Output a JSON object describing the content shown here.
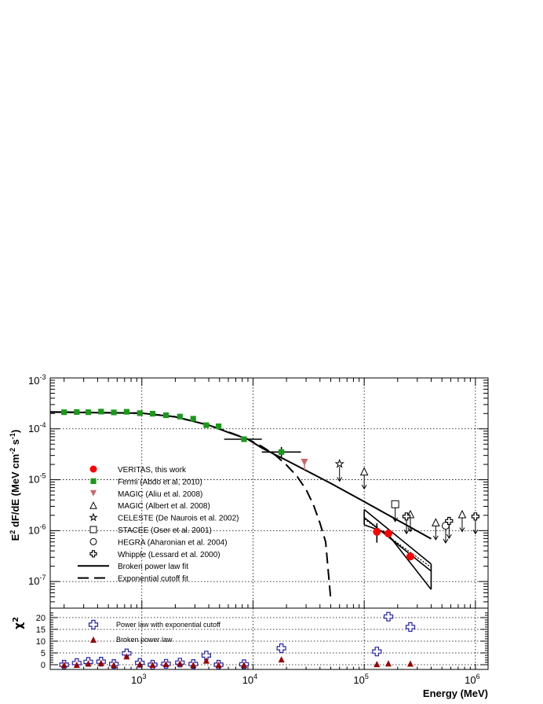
{
  "chart_data": [
    {
      "type": "scatter",
      "panel": "spectrum",
      "xlabel": "Energy (MeV)",
      "ylabel_html": "E<tspan baseline-shift='super' font-size='9'>2</tspan> dF/dE (MeV cm<tspan baseline-shift='super' font-size='9'>-2</tspan> s<tspan baseline-shift='super' font-size='9'>-1</tspan>)",
      "ylabel": "E2 dF/dE (MeV cm-2 s-1)",
      "x_scale": "log",
      "y_scale": "log",
      "xlim": [
        150,
        1300000
      ],
      "ylim": [
        3e-08,
        0.001
      ],
      "x_ticks": [
        1000,
        10000,
        100000,
        1000000
      ],
      "x_tick_labels": [
        {
          "base": "10",
          "exp": "3"
        },
        {
          "base": "10",
          "exp": "4"
        },
        {
          "base": "10",
          "exp": "5"
        },
        {
          "base": "10",
          "exp": "6"
        }
      ],
      "y_ticks": [
        1e-07,
        1e-06,
        1e-05,
        0.0001,
        0.001
      ],
      "y_tick_labels": [
        {
          "base": "10",
          "exp": "-7"
        },
        {
          "base": "10",
          "exp": "-6"
        },
        {
          "base": "10",
          "exp": "-5"
        },
        {
          "base": "10",
          "exp": "-4"
        },
        {
          "base": "10",
          "exp": "-3"
        }
      ],
      "grid": true,
      "legend_placement": "lower-left",
      "legend": [
        {
          "label": "VERITAS, this work",
          "marker": "circle-filled",
          "color": "#ff0000"
        },
        {
          "label": "Fermi (Abdo et al, 2010)",
          "marker": "square-filled",
          "color": "#1a9a1a"
        },
        {
          "label": "MAGIC (Aliu et al. 2008)",
          "marker": "triangle-down-filled",
          "color": "#cc6666"
        },
        {
          "label": "MAGIC (Albert et al. 2008)",
          "marker": "triangle-open",
          "color": "#000000"
        },
        {
          "label": "CELESTE (De Naurois et al. 2002)",
          "marker": "star-open",
          "color": "#000000"
        },
        {
          "label": "STACEE (Oser et al. 2001)",
          "marker": "square-open",
          "color": "#000000"
        },
        {
          "label": "HEGRA (Aharonian et al. 2004)",
          "marker": "circle-open",
          "color": "#000000"
        },
        {
          "label": "Whipple (Lessard et al. 2000)",
          "marker": "cross-open",
          "color": "#000000"
        },
        {
          "label": "Broken power law fit",
          "marker": "line-solid",
          "color": "#000000"
        },
        {
          "label": "Exponential cutoff fit",
          "marker": "line-dashed",
          "color": "#000000"
        }
      ],
      "series": [
        {
          "name": "VERITAS, this work",
          "marker": "circle-filled",
          "color": "#ff0000",
          "points": [
            {
              "x": 130000,
              "y": 9.5e-07,
              "ylo": 5.8e-07,
              "yhi": 1.4e-06
            },
            {
              "x": 165000,
              "y": 8.8e-07,
              "ylo": 7.6e-07,
              "yhi": 1e-06
            },
            {
              "x": 260000,
              "y": 3.1e-07,
              "ylo": 2.7e-07,
              "yhi": 3.5e-07
            }
          ]
        },
        {
          "name": "Fermi (Abdo et al, 2010)",
          "marker": "square-filled",
          "color": "#1a9a1a",
          "points": [
            {
              "x": 200,
              "y": 0.000212
            },
            {
              "x": 260,
              "y": 0.000214
            },
            {
              "x": 330,
              "y": 0.000212
            },
            {
              "x": 430,
              "y": 0.000218
            },
            {
              "x": 560,
              "y": 0.00021
            },
            {
              "x": 730,
              "y": 0.000216
            },
            {
              "x": 960,
              "y": 0.000203
            },
            {
              "x": 1250,
              "y": 0.000198
            },
            {
              "x": 1650,
              "y": 0.000185
            },
            {
              "x": 2200,
              "y": 0.000174
            },
            {
              "x": 2900,
              "y": 0.000158
            },
            {
              "x": 3800,
              "y": 0.000118
            },
            {
              "x": 4900,
              "y": 0.000112
            },
            {
              "x": 8300,
              "y": 6.25e-05,
              "xlo": 5500,
              "xhi": 12000
            },
            {
              "x": 18000,
              "y": 3.5e-05,
              "ylo": 2.8e-05,
              "yhi": 4.4e-05,
              "xlo": 12000,
              "xhi": 27000
            }
          ]
        },
        {
          "name": "MAGIC (Aliu et al. 2008)",
          "marker": "triangle-down-filled",
          "color": "#cc6666",
          "points": [
            {
              "x": 29000,
              "y": 2.2e-05,
              "ylo": 1.55e-05,
              "upper_limit": false
            }
          ]
        },
        {
          "name": "MAGIC (Albert et al. 2008)",
          "marker": "triangle-open",
          "color": "#000000",
          "points": [
            {
              "x": 100000,
              "y": 1.45e-05,
              "upper_limit": true
            },
            {
              "x": 260000,
              "y": 2.1e-06,
              "upper_limit": true
            },
            {
              "x": 440000,
              "y": 1.45e-06,
              "upper_limit": true
            },
            {
              "x": 760000,
              "y": 2.1e-06,
              "upper_limit": true
            }
          ]
        },
        {
          "name": "CELESTE (De Naurois et al. 2002)",
          "marker": "star-open",
          "color": "#000000",
          "points": [
            {
              "x": 60000,
              "y": 2.05e-05,
              "upper_limit": true
            }
          ]
        },
        {
          "name": "STACEE (Oser et al. 2001)",
          "marker": "square-open",
          "color": "#000000",
          "points": [
            {
              "x": 190000,
              "y": 3.3e-06,
              "upper_limit": true
            }
          ]
        },
        {
          "name": "HEGRA (Aharonian et al. 2004)",
          "marker": "circle-open",
          "color": "#000000",
          "points": [
            {
              "x": 540000,
              "y": 1.25e-06,
              "upper_limit": true
            }
          ]
        },
        {
          "name": "Whipple (Lessard et al. 2000)",
          "marker": "cross-open",
          "color": "#000000",
          "points": [
            {
              "x": 240000,
              "y": 1.9e-06,
              "upper_limit": true
            },
            {
              "x": 580000,
              "y": 1.55e-06,
              "upper_limit": true
            },
            {
              "x": 1000000,
              "y": 1.9e-06,
              "upper_limit": true
            }
          ]
        }
      ],
      "curves": [
        {
          "name": "Broken power law fit",
          "style": "solid",
          "color": "#000000",
          "points": [
            [
              150,
              0.000213
            ],
            [
              1000,
              0.000203
            ],
            [
              2000,
              0.000172
            ],
            [
              4000,
              0.000118
            ],
            [
              6000,
              8.52e-05
            ],
            [
              9000,
              6.23e-05
            ],
            [
              12000,
              4.22e-05
            ],
            [
              20000,
              2.4e-05
            ],
            [
              50000,
              8.5e-06
            ],
            [
              100000,
              3.7e-06
            ],
            [
              200000,
              1.6e-06
            ],
            [
              400000,
              6.9e-07
            ]
          ]
        },
        {
          "name": "Exponential cutoff fit",
          "style": "dashed",
          "color": "#000000",
          "points": [
            [
              150,
              0.000215
            ],
            [
              1000,
              0.000203
            ],
            [
              2000,
              0.000172
            ],
            [
              4000,
              0.000118
            ],
            [
              6000,
              8.7e-05
            ],
            [
              9000,
              6.23e-05
            ],
            [
              12000,
              4.5e-05
            ],
            [
              16000,
              3e-05
            ],
            [
              20000,
              1.95e-05
            ],
            [
              25000,
              1.15e-05
            ],
            [
              30000,
              6.4e-06
            ],
            [
              35000,
              3.2e-06
            ],
            [
              40000,
              1.4e-06
            ],
            [
              45000,
              6e-07
            ],
            [
              50000,
              4.5e-08
            ]
          ]
        }
      ],
      "bands": [
        {
          "style": "solid",
          "color": "#000000",
          "upper": [
            [
              100000,
              2.6e-06
            ],
            [
              400000,
              2.2e-07
            ]
          ],
          "lower": [
            [
              100000,
              1.3e-06
            ],
            [
              160000,
              9e-07
            ],
            [
              400000,
              7e-08
            ]
          ],
          "center": [
            [
              100000,
              1.8e-06
            ],
            [
              400000,
              1.6e-07
            ]
          ],
          "dotted": [
            [
              100000,
              1.7e-06
            ],
            [
              400000,
              1.9e-07
            ]
          ]
        }
      ]
    },
    {
      "type": "scatter",
      "panel": "residuals",
      "ylabel": "χ2",
      "ylabel_base": "χ",
      "ylabel_exp": "2",
      "x_scale": "log",
      "xlim": [
        150,
        1300000
      ],
      "ylim": [
        -2,
        24
      ],
      "y_ticks": [
        0,
        5,
        10,
        15,
        20
      ],
      "y_tick_labels": [
        "0",
        "5",
        "10",
        "15",
        "20"
      ],
      "grid": true,
      "legend_placement": "top-left",
      "legend": [
        {
          "label": "Power law with exponential cutoff",
          "marker": "cross-open",
          "color": "#2222aa"
        },
        {
          "label": "Broken power law",
          "marker": "triangle-filled",
          "color": "#990000"
        }
      ],
      "series": [
        {
          "name": "Power law with exponential cutoff",
          "marker": "cross-open",
          "color": "#2222aa",
          "points": [
            {
              "x": 200,
              "y": 0.0
            },
            {
              "x": 260,
              "y": 0.7
            },
            {
              "x": 330,
              "y": 1.2
            },
            {
              "x": 430,
              "y": 1.3
            },
            {
              "x": 560,
              "y": 0.3
            },
            {
              "x": 730,
              "y": 4.8
            },
            {
              "x": 960,
              "y": 0.8
            },
            {
              "x": 1250,
              "y": 0.0
            },
            {
              "x": 1650,
              "y": 0.4
            },
            {
              "x": 2200,
              "y": 0.9
            },
            {
              "x": 2900,
              "y": 0.3
            },
            {
              "x": 3800,
              "y": 3.9
            },
            {
              "x": 4900,
              "y": 0.0
            },
            {
              "x": 8300,
              "y": 0.2
            },
            {
              "x": 18000,
              "y": 7.0
            },
            {
              "x": 130000,
              "y": 5.6
            },
            {
              "x": 165000,
              "y": 20.4
            },
            {
              "x": 260000,
              "y": 16.0
            }
          ]
        },
        {
          "name": "Broken power law",
          "marker": "triangle-filled",
          "color": "#990000",
          "points": [
            {
              "x": 200,
              "y": 0.0
            },
            {
              "x": 260,
              "y": 0.0
            },
            {
              "x": 330,
              "y": 0.6
            },
            {
              "x": 430,
              "y": 0.8
            },
            {
              "x": 560,
              "y": 0.0
            },
            {
              "x": 730,
              "y": 3.6
            },
            {
              "x": 960,
              "y": 0.3
            },
            {
              "x": 1250,
              "y": 0.0
            },
            {
              "x": 1650,
              "y": 0.3
            },
            {
              "x": 2200,
              "y": 0.6
            },
            {
              "x": 2900,
              "y": 0.0
            },
            {
              "x": 3800,
              "y": 1.8
            },
            {
              "x": 4900,
              "y": 0.0
            },
            {
              "x": 8300,
              "y": 0.0
            },
            {
              "x": 18000,
              "y": 2.3
            },
            {
              "x": 130000,
              "y": 0.3
            },
            {
              "x": 165000,
              "y": 0.6
            },
            {
              "x": 260000,
              "y": 0.5
            }
          ]
        }
      ]
    }
  ]
}
